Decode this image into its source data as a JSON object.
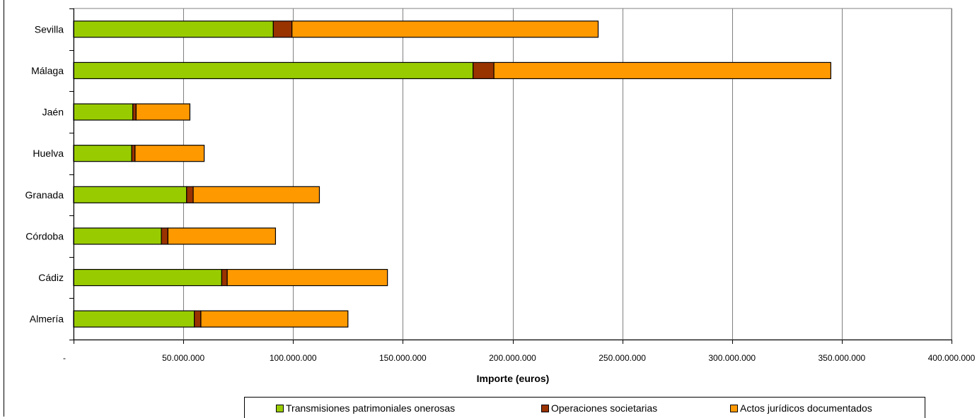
{
  "chart_data": {
    "type": "bar",
    "orientation": "horizontal",
    "stacked": true,
    "categories": [
      "Almería",
      "Cádiz",
      "Córdoba",
      "Granada",
      "Huelva",
      "Jaén",
      "Málaga",
      "Sevilla"
    ],
    "series": [
      {
        "name": "Transmisiones patrimoniales onerosas",
        "color": "#99cc00",
        "values": [
          55000000,
          67500000,
          40000000,
          51500000,
          26500000,
          27000000,
          182000000,
          91000000
        ]
      },
      {
        "name": "Operaciones societarias",
        "color": "#993300",
        "values": [
          3000000,
          2500000,
          3000000,
          3000000,
          1500000,
          1500000,
          9500000,
          8500000
        ]
      },
      {
        "name": "Actos jurídicos documentados",
        "color": "#ff9900",
        "values": [
          67000000,
          73000000,
          49000000,
          57500000,
          31500000,
          24500000,
          153500000,
          139500000
        ]
      }
    ],
    "xlabel": "Importe (euros)",
    "xlim": [
      0,
      400000000
    ],
    "x_ticks": [
      "-",
      "50.000.000",
      "100.000.000",
      "150.000.000",
      "200.000.000",
      "250.000.000",
      "300.000.000",
      "350.000.000",
      "400.000.000"
    ],
    "grid": true,
    "legend_position": "bottom"
  }
}
